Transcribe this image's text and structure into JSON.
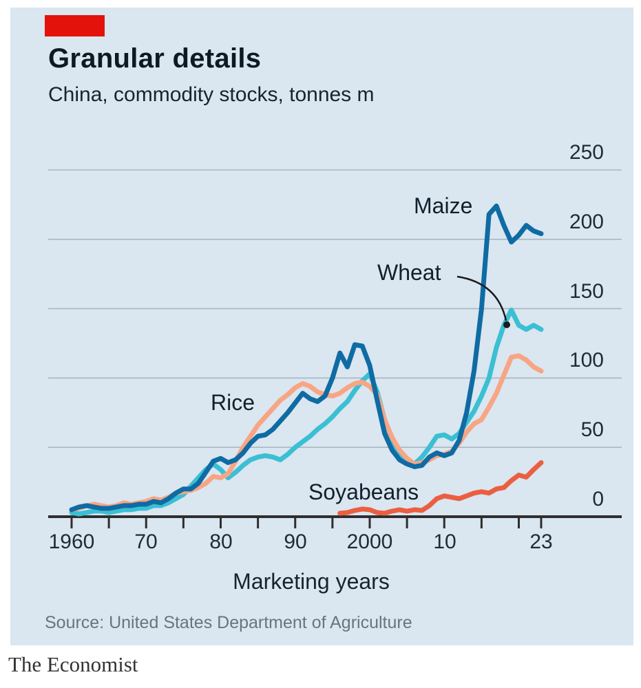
{
  "footer": {
    "source": "Source: United States Department of Agriculture",
    "wordmark": "The Economist"
  },
  "colors": {
    "page_background": "#FFFFFF",
    "card_background": "#DAE6F0",
    "red_tab": "#E3120B",
    "axis": "#2E2E2E",
    "gridline": "#A9B7C2",
    "annotation_arrow": "#1B1B1B",
    "text_primary": "#0D1A24",
    "text_ticks": "#202B36",
    "text_source": "#68747E"
  },
  "chart_data": {
    "type": "line",
    "title": "Granular details",
    "subtitle": "China, commodity stocks, tonnes m",
    "xlabel": "Marketing years",
    "ylabel": "",
    "x_range": [
      1960,
      2023
    ],
    "ylim": [
      0,
      250
    ],
    "grid": "horizontal",
    "legend": "inline-labels",
    "y_tick_labels": [
      "250",
      "200",
      "150",
      "100",
      "50",
      "0"
    ],
    "y_tick_values": [
      250,
      200,
      150,
      100,
      50,
      0
    ],
    "x_tick_labels": [
      "1960",
      "70",
      "80",
      "90",
      "2000",
      "10",
      "23"
    ],
    "x_tick_label_years": [
      1960,
      1970,
      1980,
      1990,
      2000,
      2010,
      2023
    ],
    "tick_years": [
      1960,
      1965,
      1970,
      1975,
      1980,
      1985,
      1990,
      1995,
      2000,
      2005,
      2010,
      2015,
      2020,
      2023
    ],
    "series": [
      {
        "name": "Wheat",
        "color": "#3BBFD3",
        "start_year": 1960,
        "values": [
          3,
          2,
          3,
          4,
          4,
          3,
          4,
          5,
          5,
          6,
          6,
          8,
          8,
          10,
          13,
          16,
          22,
          28,
          34,
          38,
          34,
          28,
          32,
          37,
          41,
          43,
          44,
          43,
          41,
          45,
          50,
          54,
          58,
          63,
          67,
          72,
          78,
          83,
          91,
          98,
          103,
          90,
          70,
          55,
          45,
          40,
          38,
          43,
          50,
          58,
          59,
          56,
          60,
          68,
          76,
          87,
          100,
          122,
          138,
          149,
          138,
          135,
          138,
          135
        ]
      },
      {
        "name": "Rice",
        "color": "#F8A584",
        "start_year": 1960,
        "values": [
          5,
          6,
          8,
          9,
          8,
          7,
          8,
          10,
          9,
          10,
          11,
          13,
          12,
          14,
          17,
          18,
          19,
          21,
          24,
          29,
          28,
          31,
          40,
          50,
          58,
          66,
          72,
          78,
          84,
          88,
          93,
          96,
          94,
          90,
          88,
          87,
          89,
          93,
          96,
          97,
          94,
          88,
          70,
          57,
          48,
          42,
          38,
          39,
          41,
          44,
          45,
          47,
          53,
          61,
          67,
          70,
          79,
          89,
          102,
          115,
          116,
          113,
          108,
          105
        ]
      },
      {
        "name": "Soyabeans",
        "color": "#EB5F41",
        "start_year": 1996,
        "values": [
          2.5,
          3,
          4.5,
          5.5,
          5,
          3,
          2.5,
          4,
          5,
          4,
          5,
          4.5,
          8,
          13,
          15,
          14,
          13,
          15,
          17,
          18,
          17,
          20,
          21,
          26,
          30,
          28.5,
          34,
          39
        ]
      },
      {
        "name": "Maize",
        "color": "#0F6BA3",
        "start_year": 1960,
        "values": [
          5,
          7,
          8,
          7,
          6,
          6,
          7,
          8,
          8,
          9,
          9,
          11,
          10,
          13,
          17,
          20,
          20,
          24,
          32,
          40,
          42,
          39,
          41,
          46,
          53,
          58,
          59,
          63,
          69,
          75,
          82,
          89,
          85,
          83,
          87,
          100,
          118,
          108,
          124,
          123,
          109,
          84,
          60,
          48,
          41,
          38,
          36,
          37,
          43,
          46,
          44,
          46,
          55,
          75,
          105,
          150,
          218,
          224,
          210,
          198,
          203,
          210,
          206,
          204
        ]
      }
    ]
  }
}
